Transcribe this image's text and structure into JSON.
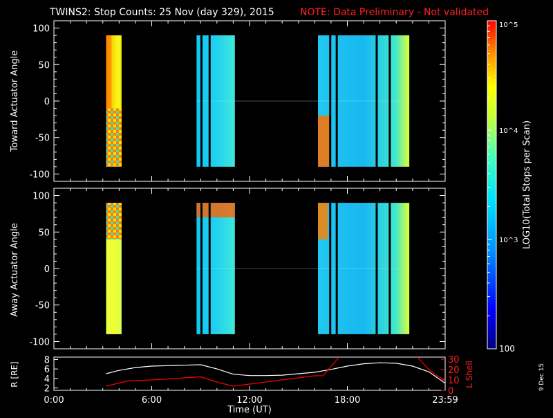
{
  "title": "TWINS2: Stop Counts: 25 Nov (day 329), 2015",
  "note": "NOTE: Data Preliminary - Not validated",
  "date_stamp": "9 Dec 15",
  "colorbar": {
    "label": "LOG10(Total Stops per Scan)",
    "tick_labels": [
      "10^5",
      "10^4",
      "10^3",
      "100"
    ],
    "range": [
      100,
      100000
    ],
    "scale": "log"
  },
  "chart_data": [
    {
      "type": "heatmap",
      "ylabel": "Toward Actuator Angle",
      "ylim": [
        -110,
        110
      ],
      "yticks": [
        100,
        50,
        0,
        -50,
        -100
      ],
      "xlim": [
        0,
        24
      ],
      "angle_range": [
        -90,
        90
      ],
      "segments": [
        {
          "t0": 3.2,
          "t1": 4.15,
          "level": 4.35,
          "note": "orange/red with checker in lower part"
        },
        {
          "t0": 8.75,
          "t1": 11.1,
          "level": 3.1
        },
        {
          "t0": 16.2,
          "t1": 21.8,
          "level": 3.2
        }
      ],
      "gaps": [
        9.05,
        9.55,
        16.95,
        17.35,
        19.8,
        20.6
      ]
    },
    {
      "type": "heatmap",
      "ylabel": "Away Actuator Angle",
      "ylim": [
        -110,
        110
      ],
      "yticks": [
        100,
        50,
        0,
        -50,
        -100
      ],
      "xlim": [
        0,
        24
      ],
      "angle_range": [
        -90,
        90
      ],
      "segments": [
        {
          "t0": 3.2,
          "t1": 4.15,
          "level": 3.9
        },
        {
          "t0": 8.75,
          "t1": 11.1,
          "level": 3.4
        },
        {
          "t0": 16.2,
          "t1": 21.8,
          "level": 3.5
        }
      ],
      "gaps": [
        9.05,
        9.55,
        16.95,
        17.35,
        19.8,
        20.6
      ]
    },
    {
      "type": "line",
      "ylabel": "R [RE]",
      "ylabel2": "L Shell",
      "xlabel": "Time (UT)",
      "xticks": [
        "0:00",
        "6:00",
        "12:00",
        "18:00",
        "23:59"
      ],
      "xlim": [
        0,
        24
      ],
      "ylim": [
        1.5,
        8.5
      ],
      "yticks": [
        2,
        4,
        6,
        8
      ],
      "ylim2": [
        0,
        32
      ],
      "yticks2": [
        0,
        10,
        20,
        30
      ],
      "series": [
        {
          "name": "R",
          "color": "#ffffff",
          "axis": "left",
          "x": [
            3.2,
            4.0,
            5.0,
            6.0,
            7.0,
            8.0,
            9.0,
            10.0,
            11.0,
            12.0,
            13.0,
            14.0,
            15.0,
            16.0,
            17.0,
            18.0,
            19.0,
            20.0,
            21.0,
            22.0,
            23.0,
            24.0
          ],
          "y": [
            5.0,
            5.7,
            6.3,
            6.6,
            6.7,
            6.8,
            6.9,
            6.0,
            4.9,
            4.6,
            4.6,
            4.7,
            5.0,
            5.3,
            5.9,
            6.6,
            7.1,
            7.3,
            7.2,
            6.6,
            5.4,
            3.0
          ]
        },
        {
          "name": "L Shell",
          "color": "#ff0000",
          "axis": "right",
          "x": [
            3.2,
            4.5,
            6.0,
            8.0,
            9.0,
            10.0,
            11.0,
            12.0,
            13.0,
            14.0,
            15.0,
            16.0,
            16.5,
            17.5
          ],
          "y": [
            4,
            9,
            10,
            12,
            13,
            8,
            4,
            6,
            8,
            10,
            12,
            14,
            14,
            32
          ]
        },
        {
          "name": "L Shell (late)",
          "color": "#ff0000",
          "axis": "right",
          "x": [
            22.3,
            23.0,
            23.5,
            24.0
          ],
          "y": [
            32,
            20,
            14,
            10
          ]
        }
      ]
    }
  ]
}
